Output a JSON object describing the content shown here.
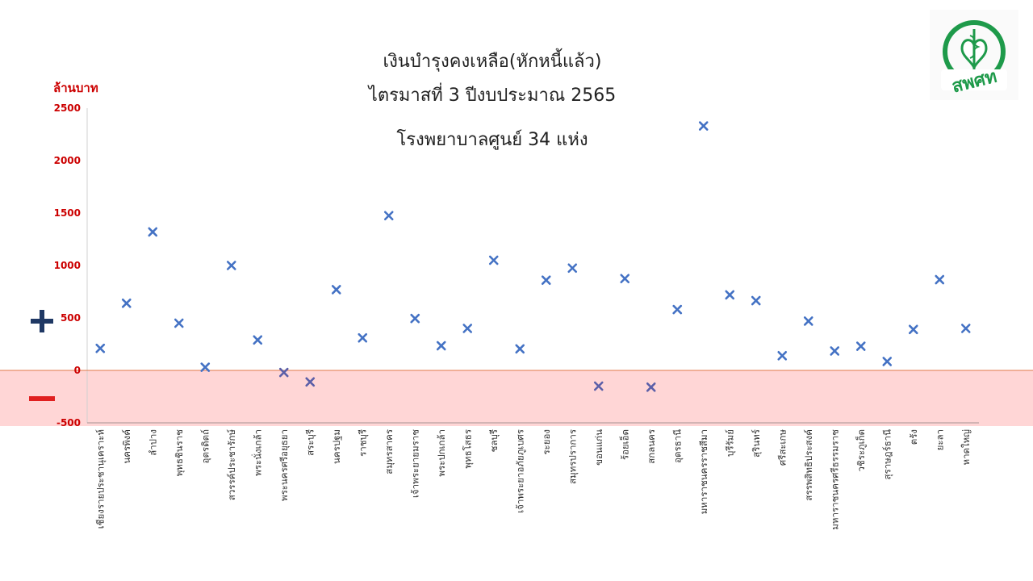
{
  "header": {
    "title_line1": "เงินบำรุงคงเหลือ(หักหนี้แล้ว)",
    "title_line2": "ไตรมาสที่ 3 ปีงบประมาณ 2565",
    "title_line3": "โรงพยาบาลศูนย์ 34  แห่ง"
  },
  "unit_label": "ล้านบาท",
  "logo": {
    "text": "สพศท",
    "color": "#1e9a4a"
  },
  "signs": {
    "positive": "+",
    "negative": "−",
    "positive_color": "#1f3864",
    "negative_color": "#e02020"
  },
  "colors": {
    "marker": "#4472c4",
    "negative_band": "#ffd6d6",
    "zero_line": "#e0784a",
    "tick_label": "#cc0000",
    "category_label": "#333333"
  },
  "chart_data": {
    "type": "scatter",
    "marker": "x",
    "title": "เงินบำรุงคงเหลือ(หักหนี้แล้ว) ไตรมาสที่ 3 ปีงบประมาณ 2565 โรงพยาบาลศูนย์ 34  แห่ง",
    "ylabel": "ล้านบาท",
    "ylim": [
      -500,
      2500
    ],
    "yticks": [
      -500,
      0,
      500,
      1000,
      1500,
      2000,
      2500
    ],
    "negative_region_shaded": true,
    "categories": [
      "เชียงรายประชานุเคราะห์",
      "นครพิงค์",
      "ลำปาง",
      "พุทธชินราช",
      "อุตรดิตถ์",
      "สวรรค์ประชารักษ์",
      "พระนั่งเกล้า",
      "พระนครศรีอยุธยา",
      "สระบุรี",
      "นครปฐม",
      "ราชบุรี",
      "สมุทรสาคร",
      "เจ้าพระยายมราช",
      "พระปกเกล้า",
      "พุทธโสธร",
      "ชลบุรี",
      "เจ้าพระยาอภัยภูเบศร",
      "ระยอง",
      "สมุทรปราการ",
      "ขอนแก่น",
      "ร้อยเอ็ด",
      "สกลนคร",
      "อุดรธานี",
      "มหาราชนครราชสีมา",
      "บุรีรัมย์",
      "สุรินทร์",
      "ศรีสะเกษ",
      "สรรพสิทธิประสงค์",
      "มหาราชนครศรีธรรมราช",
      "วชิระภูเก็ต",
      "สุราษฎร์ธานี",
      "ตรัง",
      "ยะลา",
      "หาดใหญ่"
    ],
    "values": [
      210,
      640,
      1320,
      450,
      30,
      1000,
      290,
      -20,
      -110,
      770,
      310,
      1475,
      495,
      235,
      400,
      1050,
      205,
      860,
      975,
      -150,
      875,
      -160,
      580,
      2330,
      720,
      665,
      140,
      470,
      185,
      230,
      85,
      390,
      865,
      400
    ]
  }
}
